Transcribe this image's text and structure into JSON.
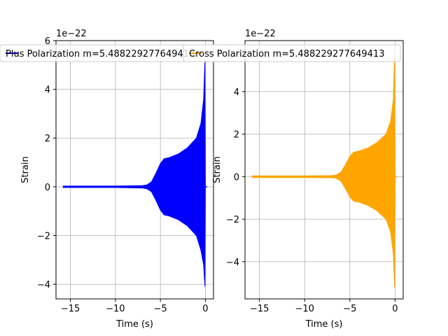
{
  "chart_data": [
    {
      "type": "line",
      "legend": "upper-center",
      "grid": true,
      "xlabel": "Time (s)",
      "ylabel": "Strain",
      "offset_text": "1e−22",
      "xlim": [
        -16.6,
        0.9
      ],
      "ylim": [
        -4.6,
        6.0
      ],
      "xticks": [
        -15,
        -10,
        -5,
        0
      ],
      "yticks": [
        -4,
        -2,
        0,
        2,
        4,
        6
      ],
      "color": "#0000ff",
      "series": [
        {
          "name": "Plus Polarization m=5.488229277649413",
          "envelope": {
            "t": [
              -15.8,
              -10,
              -7,
              -6.5,
              -6.0,
              -5.5,
              -5.0,
              -4.6,
              -4.0,
              -3.0,
              -2.0,
              -1.0,
              -0.5,
              -0.2,
              -0.05,
              0.0
            ],
            "upper": [
              0.03,
              0.03,
              0.05,
              0.08,
              0.2,
              0.55,
              0.95,
              1.15,
              1.2,
              1.35,
              1.6,
              2.0,
              2.6,
              3.6,
              5.2,
              0.02
            ],
            "lower": [
              -0.03,
              -0.03,
              -0.05,
              -0.08,
              -0.2,
              -0.55,
              -0.95,
              -1.15,
              -1.2,
              -1.35,
              -1.6,
              -2.0,
              -2.6,
              -3.2,
              -4.1,
              -0.02
            ]
          }
        }
      ]
    },
    {
      "type": "line",
      "legend": "upper-center",
      "grid": true,
      "xlabel": "Time (s)",
      "ylabel": "Strain",
      "offset_text": "1e−22",
      "xlim": [
        -16.6,
        0.9
      ],
      "ylim": [
        -5.75,
        6.4
      ],
      "xticks": [
        -15,
        -10,
        -5,
        0
      ],
      "yticks": [
        -4,
        -2,
        0,
        2,
        4
      ],
      "color": "#ffa500",
      "series": [
        {
          "name": "Cross Polarization m=5.488229277649413",
          "envelope": {
            "t": [
              -15.8,
              -10,
              -7,
              -6.5,
              -6.0,
              -5.5,
              -5.0,
              -4.6,
              -4.0,
              -3.0,
              -2.0,
              -1.0,
              -0.5,
              -0.2,
              -0.05,
              0.0
            ],
            "upper": [
              0.04,
              0.04,
              0.05,
              0.08,
              0.2,
              0.55,
              0.95,
              1.15,
              1.2,
              1.35,
              1.6,
              2.0,
              2.6,
              3.6,
              5.8,
              0.02
            ],
            "lower": [
              -0.04,
              -0.04,
              -0.05,
              -0.08,
              -0.2,
              -0.55,
              -0.95,
              -1.15,
              -1.2,
              -1.35,
              -1.6,
              -2.0,
              -2.6,
              -3.6,
              -5.2,
              -0.02
            ]
          }
        }
      ]
    }
  ]
}
